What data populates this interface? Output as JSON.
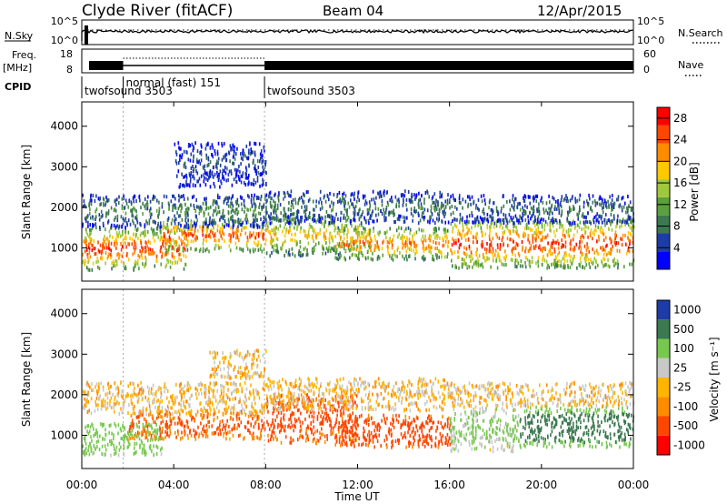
{
  "header": {
    "station": "Clyde River (fitACF)",
    "beam": "Beam 04",
    "date": "12/Apr/2015"
  },
  "status_panels": {
    "nsky_label": "N.Sky",
    "nsky_ticks": [
      "10^5",
      "10^0"
    ],
    "nsearch_label": "N.Search",
    "nsearch_ticks": [
      "10^5",
      "10^0"
    ],
    "freq_label_1": "Freq.",
    "freq_label_2": "[MHz]",
    "freq_ticks": [
      18,
      8
    ],
    "nave_label": "Nave",
    "nave_ticks": [
      60,
      0
    ],
    "cpid_label": "CPID",
    "cpid_segments": [
      {
        "name": "twofsound 3503",
        "start_hour": 0.0,
        "end_hour": 1.8
      },
      {
        "name": "normal (fast) 151",
        "start_hour": 1.8,
        "end_hour": 7.95
      },
      {
        "name": "twofsound 3503",
        "start_hour": 7.95,
        "end_hour": 24.0
      }
    ]
  },
  "axes": {
    "xlabel": "Time UT",
    "x_ticks": [
      "00:00",
      "04:00",
      "08:00",
      "12:00",
      "16:00",
      "20:00",
      "00:00"
    ],
    "x_range_hours": [
      0,
      24
    ],
    "ylabel": "Slant Range [km]",
    "y_ticks": [
      1000,
      2000,
      3000,
      4000
    ],
    "y_range_km": [
      180,
      4600
    ]
  },
  "colors": {
    "power": [
      "#0000ff",
      "#1e3ca8",
      "#3c7850",
      "#5aa03c",
      "#a0c83c",
      "#ffc800",
      "#ff8c00",
      "#ff4600",
      "#ff0000"
    ],
    "velocity": [
      "#ff0000",
      "#ff4600",
      "#ff8c00",
      "#ffb400",
      "#c8c8c8",
      "#78c850",
      "#3c7850",
      "#1e3ca8"
    ]
  },
  "chart_data": [
    {
      "type": "heatmap",
      "name": "Power",
      "colorbar_label": "Power [dB]",
      "colorbar_ticks": [
        4,
        8,
        12,
        16,
        20,
        24,
        28
      ],
      "colorbar_range": [
        0,
        30
      ],
      "xlabel": "Time UT",
      "ylabel": "Slant Range [km]",
      "x_range_hours": [
        0,
        24
      ],
      "y_range_km": [
        180,
        4600
      ],
      "bands": [
        {
          "t0": 0.0,
          "t1": 4.5,
          "r_lo": 450,
          "r_hi": 1500,
          "peak_db": 27
        },
        {
          "t0": 3.5,
          "t1": 8.0,
          "r_lo": 900,
          "r_hi": 1700,
          "peak_db": 26
        },
        {
          "t0": 0.0,
          "t1": 8.0,
          "r_lo": 1500,
          "r_hi": 2300,
          "peak_db": 10
        },
        {
          "t0": 4.0,
          "t1": 8.0,
          "r_lo": 2500,
          "r_hi": 3600,
          "peak_db": 6
        },
        {
          "t0": 8.0,
          "t1": 12.5,
          "r_lo": 800,
          "r_hi": 1800,
          "peak_db": 20
        },
        {
          "t0": 11.0,
          "t1": 16.0,
          "r_lo": 700,
          "r_hi": 1500,
          "peak_db": 24
        },
        {
          "t0": 8.0,
          "t1": 16.0,
          "r_lo": 1600,
          "r_hi": 2400,
          "peak_db": 9
        },
        {
          "t0": 16.0,
          "t1": 24.0,
          "r_lo": 500,
          "r_hi": 1700,
          "peak_db": 27
        },
        {
          "t0": 16.0,
          "t1": 24.0,
          "r_lo": 1600,
          "r_hi": 2300,
          "peak_db": 8
        }
      ]
    },
    {
      "type": "heatmap",
      "name": "Velocity",
      "colorbar_label": "Velocity [m s⁻¹]",
      "colorbar_ticks": [
        1000,
        500,
        100,
        25,
        -25,
        -100,
        -500,
        -1000
      ],
      "xlabel": "Time UT",
      "ylabel": "Slant Range [km]",
      "x_range_hours": [
        0,
        24
      ],
      "y_range_km": [
        180,
        4600
      ],
      "bands": [
        {
          "t0": 0.0,
          "t1": 3.5,
          "r_lo": 500,
          "r_hi": 1300,
          "vel": 350
        },
        {
          "t0": 2.0,
          "t1": 8.0,
          "r_lo": 900,
          "r_hi": 1600,
          "vel": -150
        },
        {
          "t0": 0.0,
          "t1": 8.0,
          "r_lo": 1500,
          "r_hi": 2300,
          "vel": 10
        },
        {
          "t0": 5.5,
          "t1": 8.0,
          "r_lo": 2400,
          "r_hi": 3100,
          "vel": 10
        },
        {
          "t0": 8.0,
          "t1": 12.0,
          "r_lo": 800,
          "r_hi": 2000,
          "vel": -200
        },
        {
          "t0": 11.0,
          "t1": 16.0,
          "r_lo": 700,
          "r_hi": 1500,
          "vel": -300
        },
        {
          "t0": 8.0,
          "t1": 16.0,
          "r_lo": 1600,
          "r_hi": 2400,
          "vel": 10
        },
        {
          "t0": 16.0,
          "t1": 19.0,
          "r_lo": 600,
          "r_hi": 1700,
          "vel": 150
        },
        {
          "t0": 19.0,
          "t1": 24.0,
          "r_lo": 700,
          "r_hi": 1700,
          "vel": 900
        },
        {
          "t0": 16.0,
          "t1": 24.0,
          "r_lo": 1700,
          "r_hi": 2300,
          "vel": 10
        }
      ]
    }
  ]
}
